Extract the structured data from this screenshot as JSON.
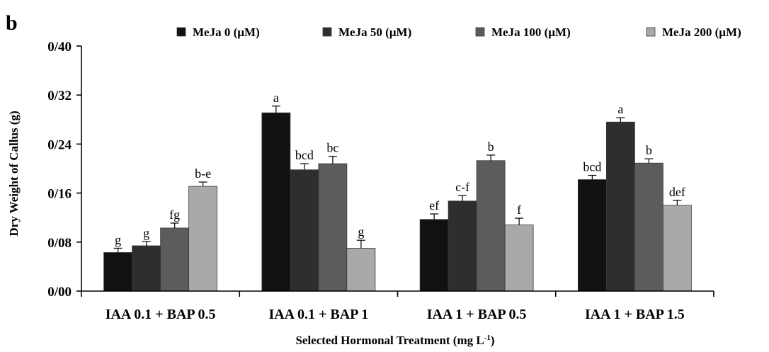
{
  "panel_label": "b",
  "chart_data": {
    "type": "bar",
    "title": "",
    "xlabel": "Selected Hormonal Treatment (mg L",
    "xlabel_superscript": "-1",
    "xlabel_suffix": ")",
    "ylabel": "Dry Weight of Callus (g)",
    "ylim": [
      0,
      0.4
    ],
    "yticks": [
      "0/00",
      "0/08",
      "0/16",
      "0/24",
      "0/32",
      "0/40"
    ],
    "ytick_values": [
      0,
      0.08,
      0.16,
      0.24,
      0.32,
      0.4
    ],
    "categories": [
      "IAA 0.1 + BAP 0.5",
      "IAA 0.1 + BAP 1",
      "IAA 1 + BAP 0.5",
      "IAA 1 + BAP 1.5"
    ],
    "grid": false,
    "legend_position": "top",
    "series": [
      {
        "name": "MeJa 0 (µM)",
        "color": "#111111",
        "values": [
          0.063,
          0.291,
          0.117,
          0.182
        ],
        "errors": [
          0.007,
          0.011,
          0.009,
          0.007
        ],
        "labels": [
          "g",
          "a",
          "ef",
          "bcd"
        ]
      },
      {
        "name": "MeJa 50 (µM)",
        "color": "#2e2e2e",
        "values": [
          0.074,
          0.198,
          0.147,
          0.276
        ],
        "errors": [
          0.007,
          0.01,
          0.009,
          0.007
        ],
        "labels": [
          "g",
          "bcd",
          "c-f",
          "a"
        ]
      },
      {
        "name": "MeJa 100 (µM)",
        "color": "#5c5c5c",
        "values": [
          0.103,
          0.208,
          0.213,
          0.209
        ],
        "errors": [
          0.008,
          0.012,
          0.009,
          0.007
        ],
        "labels": [
          "fg",
          "bc",
          "b",
          "b"
        ]
      },
      {
        "name": "MeJa 200 (µM)",
        "color": "#a9a9a9",
        "values": [
          0.171,
          0.07,
          0.108,
          0.14
        ],
        "errors": [
          0.007,
          0.013,
          0.011,
          0.008
        ],
        "labels": [
          "b-e",
          "g",
          "f",
          "def"
        ]
      }
    ]
  }
}
